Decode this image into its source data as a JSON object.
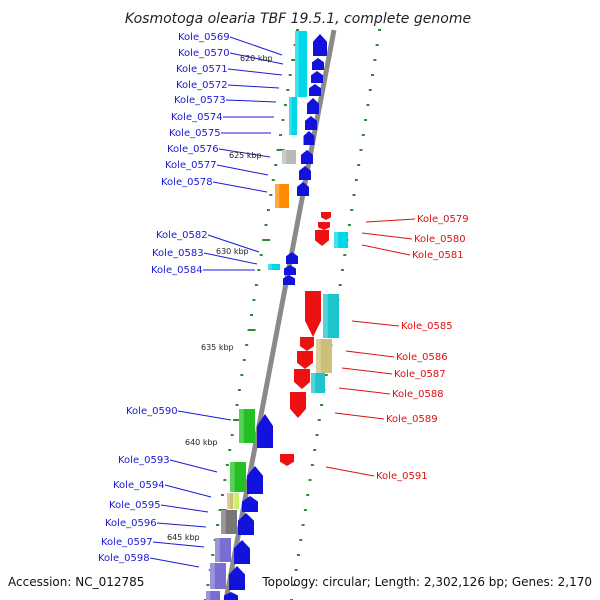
{
  "title": "Kosmotoga olearia TBF 19.5.1, complete genome",
  "footer": {
    "accession": "Accession: NC_012785",
    "summary": "Topology: circular; Length: 2,302,126 bp; Genes: 2,170"
  },
  "colors": {
    "forward_label": "#1a1ad6",
    "reverse_label": "#dd1111",
    "backbone": "#8a8a8a",
    "tick": "#2e8b2e",
    "gene_blue": "#1212dd",
    "gene_red": "#ee1111",
    "cyan": "#00d8e8",
    "teal": "#1cc4cc",
    "khaki": "#cbbf7a",
    "orange": "#ff8c00",
    "green": "#22c022",
    "lime": "#c8f060",
    "gray": "#777777",
    "lightgray": "#b8b8b8",
    "purple": "#7a6fd0"
  },
  "kbp_labels": [
    "620 kbp",
    "625 kbp",
    "630 kbp",
    "635 kbp",
    "640 kbp",
    "645 kbp"
  ],
  "forward_genes": [
    "Kole_0569",
    "Kole_0570",
    "Kole_0571",
    "Kole_0572",
    "Kole_0573",
    "Kole_0574",
    "Kole_0575",
    "Kole_0576",
    "Kole_0577",
    "Kole_0578",
    "Kole_0582",
    "Kole_0583",
    "Kole_0584",
    "Kole_0590",
    "Kole_0593",
    "Kole_0594",
    "Kole_0595",
    "Kole_0596",
    "Kole_0597",
    "Kole_0598"
  ],
  "reverse_genes": [
    "Kole_0579",
    "Kole_0580",
    "Kole_0581",
    "Kole_0585",
    "Kole_0586",
    "Kole_0587",
    "Kole_0588",
    "Kole_0589",
    "Kole_0591"
  ]
}
